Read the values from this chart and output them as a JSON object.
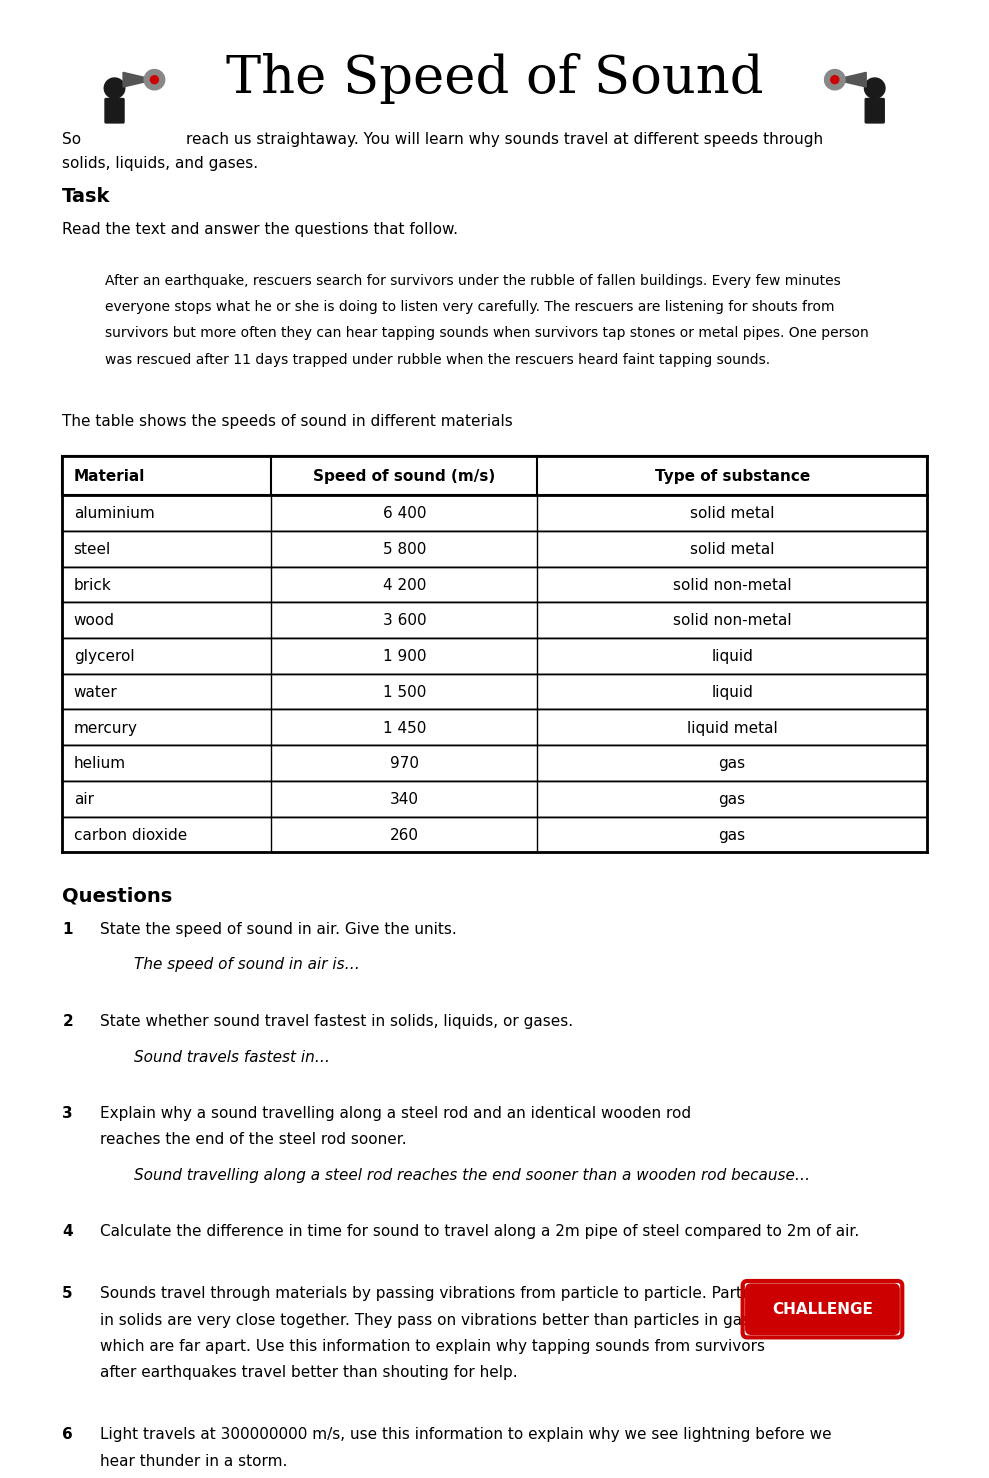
{
  "title": "The Speed of Sound",
  "subtitle_line1": "So",
  "subtitle_line2": "reach us straightaway. You will learn why sounds travel at different speeds through",
  "subtitle_line3": "solids, liquids, and gases.",
  "task_header": "Task",
  "task_intro": "Read the text and answer the questions that follow.",
  "passage": "After an earthquake, rescuers search for survivors under the rubble of fallen buildings. Every few minutes\neveryone stops what he or she is doing to listen very carefully. The rescuers are listening for shouts from\nsurvivors but more often they can hear tapping sounds when survivors tap stones or metal pipes. One person\nwas rescued after 11 days trapped under rubble when the rescuers heard faint tapping sounds.",
  "table_intro": "The table shows the speeds of sound in different materials",
  "table_headers": [
    "Material",
    "Speed of sound (m/s)",
    "Type of substance"
  ],
  "table_data": [
    [
      "aluminium",
      "6 400",
      "solid metal"
    ],
    [
      "steel",
      "5 800",
      "solid metal"
    ],
    [
      "brick",
      "4 200",
      "solid non-metal"
    ],
    [
      "wood",
      "3 600",
      "solid non-metal"
    ],
    [
      "glycerol",
      "1 900",
      "liquid"
    ],
    [
      "water",
      "1 500",
      "liquid"
    ],
    [
      "mercury",
      "1 450",
      "liquid metal"
    ],
    [
      "helium",
      "970",
      "gas"
    ],
    [
      "air",
      "340",
      "gas"
    ],
    [
      "carbon dioxide",
      "260",
      "gas"
    ]
  ],
  "questions_header": "Questions",
  "questions": [
    {
      "number": "1",
      "text": "State the speed of sound in air. Give the units.",
      "answer_prompt": "The speed of sound in air is…"
    },
    {
      "number": "2",
      "text": "State whether sound travel fastest in solids, liquids, or gases.",
      "answer_prompt": "Sound travels fastest in…"
    },
    {
      "number": "3",
      "text": "Explain why a sound travelling along a steel rod and an identical wooden rod\nreaches the end of the steel rod sooner.",
      "answer_prompt": "Sound travelling along a steel rod reaches the end sooner than a wooden rod because…"
    },
    {
      "number": "4",
      "text": "Calculate the difference in time for sound to travel along a 2m pipe of steel compared to 2m of air.",
      "answer_prompt": null
    },
    {
      "number": "5",
      "text": "Sounds travel through materials by passing vibrations from particle to particle. Particles\nin solids are very close together. They pass on vibrations better than particles in gases,\nwhich are far apart. Use this information to explain why tapping sounds from survivors\nafter earthquakes travel better than shouting for help.",
      "answer_prompt": null,
      "challenge": true
    },
    {
      "number": "6",
      "text": "Light travels at 300000000 m/s, use this information to explain why we see lightning before we\nhear thunder in a storm.",
      "answer_prompt": null
    }
  ],
  "background_color": "#ffffff",
  "text_color": "#000000",
  "table_border_color": "#000000",
  "challenge_bg": "#cc0000",
  "challenge_text": "#ffffff",
  "challenge_label": "CHALLENGE"
}
